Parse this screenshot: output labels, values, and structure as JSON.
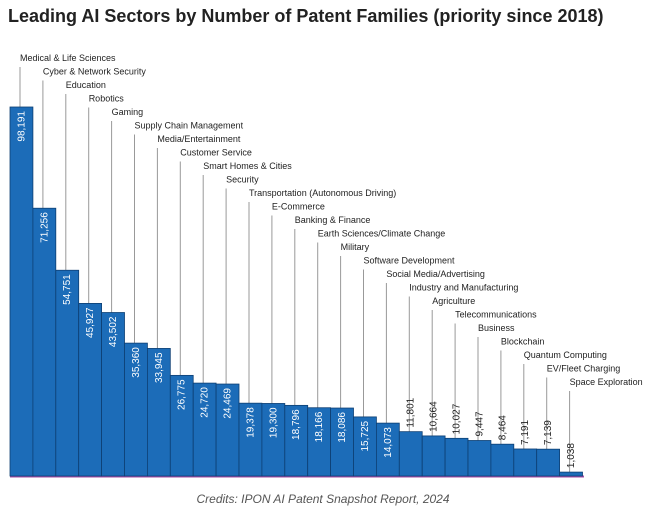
{
  "chart_data": {
    "type": "bar",
    "title": "Leading AI Sectors by Number of Patent Families (priority since 2018)",
    "categories": [
      "Medical & Life Sciences",
      "Cyber & Network Security",
      "Education",
      "Robotics",
      "Gaming",
      "Supply Chain Management",
      "Media/Entertainment",
      "Customer Service",
      "Smart Homes & Cities",
      "Security",
      "Transportation (Autonomous Driving)",
      "E-Commerce",
      "Banking & Finance",
      "Earth Sciences/Climate Change",
      "Military",
      "Software Development",
      "Social Media/Advertising",
      "Industry and Manufacturing",
      "Agriculture",
      "Telecommunications",
      "Business",
      "Blockchain",
      "Quantum Computing",
      "EV/Fleet Charging",
      "Space Exploration"
    ],
    "values": [
      98191,
      71256,
      54751,
      45927,
      43502,
      35360,
      33945,
      26775,
      24720,
      24469,
      19378,
      19300,
      18796,
      18166,
      18086,
      15725,
      14073,
      11801,
      10664,
      10027,
      9447,
      8464,
      7191,
      7139,
      1038
    ],
    "value_labels": [
      "98,191",
      "71,256",
      "54,751",
      "45,927",
      "43,502",
      "35,360",
      "33,945",
      "26,775",
      "24,720",
      "24,469",
      "19,378",
      "19,300",
      "18,796",
      "18,166",
      "18,086",
      "15,725",
      "14,073",
      "11,801",
      "10,664",
      "10,027",
      "9,447",
      "8,464",
      "7,191",
      "7,139",
      "1,038"
    ],
    "color": "#1c6cb8",
    "credit": "Credits: IPON AI Patent Snapshot Report, 2024"
  }
}
